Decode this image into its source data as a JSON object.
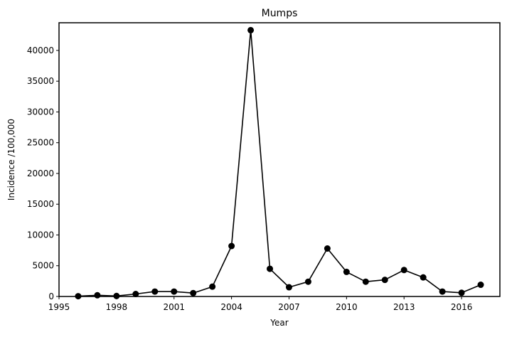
{
  "chart_data": {
    "type": "line",
    "title": "Mumps",
    "xlabel": "Year",
    "ylabel": "Incidence /100,000",
    "xlim": [
      1995,
      2018
    ],
    "ylim": [
      0,
      44500
    ],
    "xticks": [
      1995,
      1998,
      2001,
      2004,
      2007,
      2010,
      2013,
      2016
    ],
    "yticks": [
      0,
      5000,
      10000,
      15000,
      20000,
      25000,
      30000,
      35000,
      40000
    ],
    "grid": false,
    "legend": "none",
    "series": [
      {
        "color": "#000000",
        "marker": "circle",
        "x": [
          1996,
          1997,
          1998,
          1999,
          2000,
          2001,
          2002,
          2003,
          2004,
          2005,
          2006,
          2007,
          2008,
          2009,
          2010,
          2011,
          2012,
          2013,
          2014,
          2015,
          2016,
          2017
        ],
        "y": [
          50,
          200,
          80,
          400,
          800,
          800,
          550,
          1600,
          8200,
          43300,
          4500,
          1500,
          2400,
          7800,
          4000,
          2400,
          2700,
          4300,
          3100,
          800,
          600,
          1900
        ]
      }
    ]
  }
}
